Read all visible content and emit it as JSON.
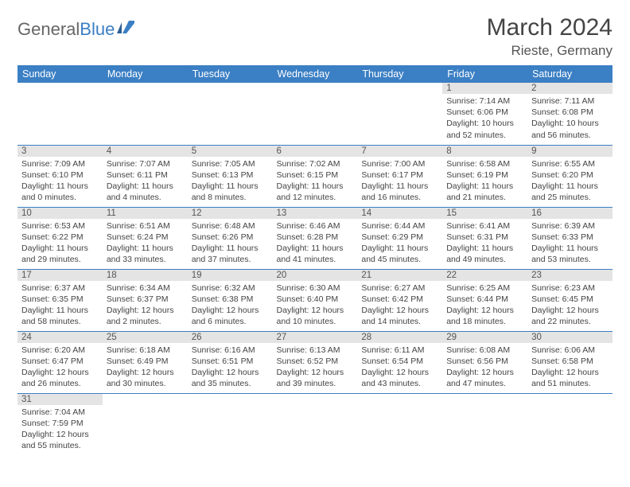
{
  "logo": {
    "text1": "General",
    "text2": "Blue"
  },
  "title": "March 2024",
  "location": "Rieste, Germany",
  "colors": {
    "header_bg": "#3b7fc4",
    "header_text": "#ffffff",
    "daynum_bg": "#e4e4e4",
    "row_border": "#3b7fc4",
    "body_text": "#444444"
  },
  "day_headers": [
    "Sunday",
    "Monday",
    "Tuesday",
    "Wednesday",
    "Thursday",
    "Friday",
    "Saturday"
  ],
  "weeks": [
    [
      null,
      null,
      null,
      null,
      null,
      {
        "n": "1",
        "sr": "Sunrise: 7:14 AM",
        "ss": "Sunset: 6:06 PM",
        "dl1": "Daylight: 10 hours",
        "dl2": "and 52 minutes."
      },
      {
        "n": "2",
        "sr": "Sunrise: 7:11 AM",
        "ss": "Sunset: 6:08 PM",
        "dl1": "Daylight: 10 hours",
        "dl2": "and 56 minutes."
      }
    ],
    [
      {
        "n": "3",
        "sr": "Sunrise: 7:09 AM",
        "ss": "Sunset: 6:10 PM",
        "dl1": "Daylight: 11 hours",
        "dl2": "and 0 minutes."
      },
      {
        "n": "4",
        "sr": "Sunrise: 7:07 AM",
        "ss": "Sunset: 6:11 PM",
        "dl1": "Daylight: 11 hours",
        "dl2": "and 4 minutes."
      },
      {
        "n": "5",
        "sr": "Sunrise: 7:05 AM",
        "ss": "Sunset: 6:13 PM",
        "dl1": "Daylight: 11 hours",
        "dl2": "and 8 minutes."
      },
      {
        "n": "6",
        "sr": "Sunrise: 7:02 AM",
        "ss": "Sunset: 6:15 PM",
        "dl1": "Daylight: 11 hours",
        "dl2": "and 12 minutes."
      },
      {
        "n": "7",
        "sr": "Sunrise: 7:00 AM",
        "ss": "Sunset: 6:17 PM",
        "dl1": "Daylight: 11 hours",
        "dl2": "and 16 minutes."
      },
      {
        "n": "8",
        "sr": "Sunrise: 6:58 AM",
        "ss": "Sunset: 6:19 PM",
        "dl1": "Daylight: 11 hours",
        "dl2": "and 21 minutes."
      },
      {
        "n": "9",
        "sr": "Sunrise: 6:55 AM",
        "ss": "Sunset: 6:20 PM",
        "dl1": "Daylight: 11 hours",
        "dl2": "and 25 minutes."
      }
    ],
    [
      {
        "n": "10",
        "sr": "Sunrise: 6:53 AM",
        "ss": "Sunset: 6:22 PM",
        "dl1": "Daylight: 11 hours",
        "dl2": "and 29 minutes."
      },
      {
        "n": "11",
        "sr": "Sunrise: 6:51 AM",
        "ss": "Sunset: 6:24 PM",
        "dl1": "Daylight: 11 hours",
        "dl2": "and 33 minutes."
      },
      {
        "n": "12",
        "sr": "Sunrise: 6:48 AM",
        "ss": "Sunset: 6:26 PM",
        "dl1": "Daylight: 11 hours",
        "dl2": "and 37 minutes."
      },
      {
        "n": "13",
        "sr": "Sunrise: 6:46 AM",
        "ss": "Sunset: 6:28 PM",
        "dl1": "Daylight: 11 hours",
        "dl2": "and 41 minutes."
      },
      {
        "n": "14",
        "sr": "Sunrise: 6:44 AM",
        "ss": "Sunset: 6:29 PM",
        "dl1": "Daylight: 11 hours",
        "dl2": "and 45 minutes."
      },
      {
        "n": "15",
        "sr": "Sunrise: 6:41 AM",
        "ss": "Sunset: 6:31 PM",
        "dl1": "Daylight: 11 hours",
        "dl2": "and 49 minutes."
      },
      {
        "n": "16",
        "sr": "Sunrise: 6:39 AM",
        "ss": "Sunset: 6:33 PM",
        "dl1": "Daylight: 11 hours",
        "dl2": "and 53 minutes."
      }
    ],
    [
      {
        "n": "17",
        "sr": "Sunrise: 6:37 AM",
        "ss": "Sunset: 6:35 PM",
        "dl1": "Daylight: 11 hours",
        "dl2": "and 58 minutes."
      },
      {
        "n": "18",
        "sr": "Sunrise: 6:34 AM",
        "ss": "Sunset: 6:37 PM",
        "dl1": "Daylight: 12 hours",
        "dl2": "and 2 minutes."
      },
      {
        "n": "19",
        "sr": "Sunrise: 6:32 AM",
        "ss": "Sunset: 6:38 PM",
        "dl1": "Daylight: 12 hours",
        "dl2": "and 6 minutes."
      },
      {
        "n": "20",
        "sr": "Sunrise: 6:30 AM",
        "ss": "Sunset: 6:40 PM",
        "dl1": "Daylight: 12 hours",
        "dl2": "and 10 minutes."
      },
      {
        "n": "21",
        "sr": "Sunrise: 6:27 AM",
        "ss": "Sunset: 6:42 PM",
        "dl1": "Daylight: 12 hours",
        "dl2": "and 14 minutes."
      },
      {
        "n": "22",
        "sr": "Sunrise: 6:25 AM",
        "ss": "Sunset: 6:44 PM",
        "dl1": "Daylight: 12 hours",
        "dl2": "and 18 minutes."
      },
      {
        "n": "23",
        "sr": "Sunrise: 6:23 AM",
        "ss": "Sunset: 6:45 PM",
        "dl1": "Daylight: 12 hours",
        "dl2": "and 22 minutes."
      }
    ],
    [
      {
        "n": "24",
        "sr": "Sunrise: 6:20 AM",
        "ss": "Sunset: 6:47 PM",
        "dl1": "Daylight: 12 hours",
        "dl2": "and 26 minutes."
      },
      {
        "n": "25",
        "sr": "Sunrise: 6:18 AM",
        "ss": "Sunset: 6:49 PM",
        "dl1": "Daylight: 12 hours",
        "dl2": "and 30 minutes."
      },
      {
        "n": "26",
        "sr": "Sunrise: 6:16 AM",
        "ss": "Sunset: 6:51 PM",
        "dl1": "Daylight: 12 hours",
        "dl2": "and 35 minutes."
      },
      {
        "n": "27",
        "sr": "Sunrise: 6:13 AM",
        "ss": "Sunset: 6:52 PM",
        "dl1": "Daylight: 12 hours",
        "dl2": "and 39 minutes."
      },
      {
        "n": "28",
        "sr": "Sunrise: 6:11 AM",
        "ss": "Sunset: 6:54 PM",
        "dl1": "Daylight: 12 hours",
        "dl2": "and 43 minutes."
      },
      {
        "n": "29",
        "sr": "Sunrise: 6:08 AM",
        "ss": "Sunset: 6:56 PM",
        "dl1": "Daylight: 12 hours",
        "dl2": "and 47 minutes."
      },
      {
        "n": "30",
        "sr": "Sunrise: 6:06 AM",
        "ss": "Sunset: 6:58 PM",
        "dl1": "Daylight: 12 hours",
        "dl2": "and 51 minutes."
      }
    ],
    [
      {
        "n": "31",
        "sr": "Sunrise: 7:04 AM",
        "ss": "Sunset: 7:59 PM",
        "dl1": "Daylight: 12 hours",
        "dl2": "and 55 minutes."
      },
      null,
      null,
      null,
      null,
      null,
      null
    ]
  ]
}
